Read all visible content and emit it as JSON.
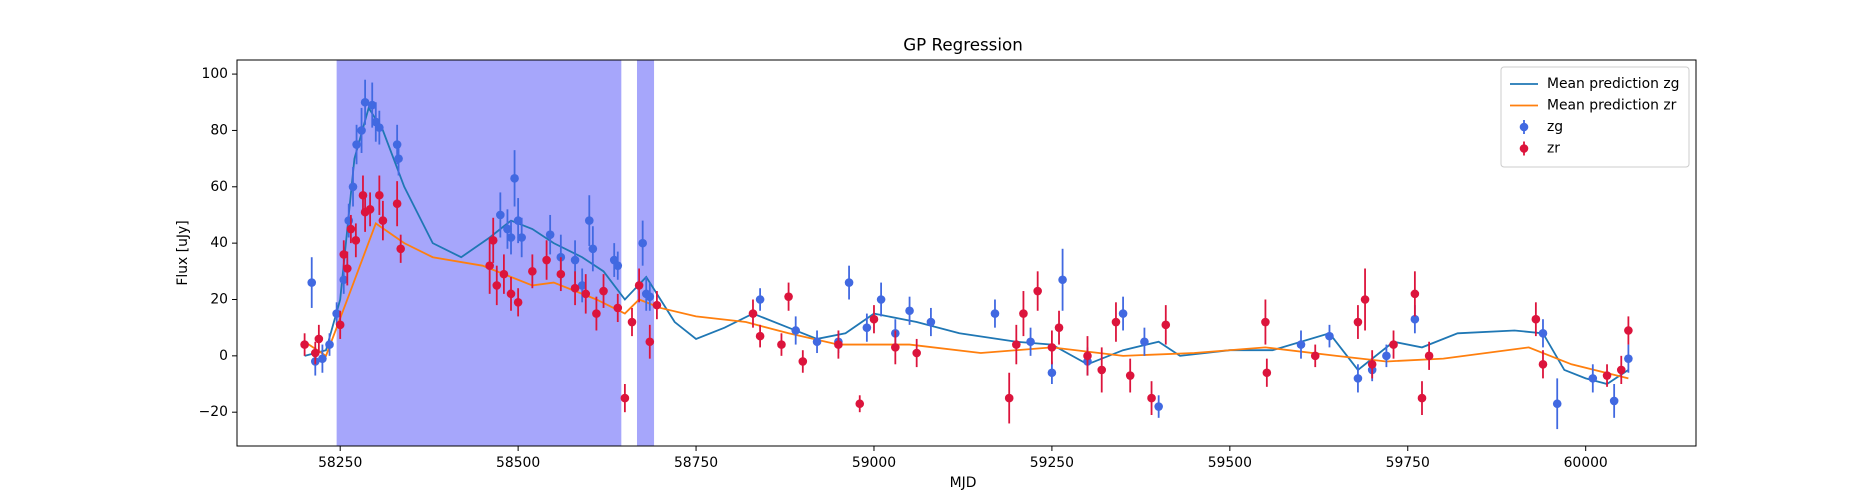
{
  "chart_data": {
    "type": "errorbar",
    "title": "GP Regression",
    "x_label": "MJD",
    "y_label": "Flux [uJy]",
    "xlim": [
      58105,
      60155
    ],
    "ylim": [
      -32,
      105
    ],
    "xticks": [
      58250,
      58500,
      58750,
      59000,
      59250,
      59500,
      59750,
      60000
    ],
    "yticks": [
      {
        "value": -20,
        "label": "−20"
      },
      0,
      20,
      40,
      60,
      80,
      100
    ],
    "legend": "upper right",
    "spans": [
      [
        58245,
        58645
      ],
      [
        58667,
        58691
      ]
    ],
    "span_color": "#a6a6fb",
    "series": [
      {
        "name": "Mean prediction zg",
        "kind": "line",
        "color": "#1f77b4",
        "x": [
          58200,
          58230,
          58250,
          58270,
          58290,
          58310,
          58340,
          58380,
          58420,
          58460,
          58490,
          58520,
          58550,
          58590,
          58620,
          58650,
          58665,
          58680,
          58700,
          58720,
          58750,
          58790,
          58830,
          58880,
          58920,
          58960,
          59000,
          59060,
          59120,
          59200,
          59250,
          59300,
          59350,
          59400,
          59430,
          59500,
          59560,
          59640,
          59680,
          59730,
          59770,
          59820,
          59900,
          59940,
          59970,
          60000,
          60030,
          60060
        ],
        "values": [
          0,
          2,
          20,
          70,
          88,
          80,
          60,
          40,
          35,
          42,
          48,
          45,
          40,
          35,
          30,
          20,
          24,
          28,
          20,
          12,
          6,
          10,
          15,
          10,
          6,
          8,
          15,
          12,
          8,
          5,
          4,
          -3,
          2,
          5,
          0,
          2,
          2,
          8,
          -5,
          5,
          3,
          8,
          9,
          8,
          -5,
          -8,
          -10,
          -5
        ]
      },
      {
        "name": "Mean prediction zr",
        "kind": "line",
        "color": "#ff7f0e",
        "x": [
          58200,
          58230,
          58260,
          58300,
          58340,
          58380,
          58450,
          58520,
          58550,
          58610,
          58650,
          58670,
          58700,
          58750,
          58820,
          58880,
          58950,
          59050,
          59150,
          59250,
          59350,
          59450,
          59550,
          59650,
          59720,
          59800,
          59920,
          59980,
          60060
        ],
        "values": [
          5,
          0,
          20,
          47,
          40,
          35,
          32,
          25,
          26,
          20,
          15,
          20,
          17,
          14,
          12,
          8,
          4,
          4,
          1,
          3,
          0,
          1,
          3,
          0,
          -2,
          -1,
          3,
          -3,
          -8
        ]
      },
      {
        "name": "zg",
        "kind": "errorbar",
        "color": "#4169e1",
        "x": [
          58210,
          58215,
          58225,
          58235,
          58245,
          58255,
          58262,
          58268,
          58273,
          58280,
          58285,
          58295,
          58300,
          58305,
          58330,
          58332,
          58475,
          58485,
          58490,
          58495,
          58500,
          58505,
          58545,
          58560,
          58580,
          58590,
          58600,
          58605,
          58635,
          58640,
          58675,
          58680,
          58685,
          58840,
          58890,
          58920,
          58950,
          58965,
          58990,
          59010,
          59030,
          59050,
          59080,
          59170,
          59220,
          59250,
          59265,
          59300,
          59350,
          59380,
          59400,
          59600,
          59640,
          59680,
          59700,
          59720,
          59760,
          59940,
          59960,
          60010,
          60040,
          60060
        ],
        "values": [
          26,
          -2,
          -1,
          4,
          15,
          27,
          48,
          60,
          75,
          80,
          90,
          89,
          83,
          81,
          75,
          70,
          50,
          45,
          42,
          63,
          48,
          42,
          43,
          35,
          34,
          25,
          48,
          38,
          34,
          32,
          40,
          22,
          21,
          20,
          9,
          5,
          5,
          26,
          10,
          20,
          8,
          16,
          12,
          15,
          5,
          -6,
          27,
          -2,
          15,
          5,
          -18,
          4,
          7,
          -8,
          -5,
          0,
          13,
          8,
          -17,
          -8,
          -16,
          -1
        ],
        "errors": [
          9,
          5,
          5,
          4,
          4,
          5,
          6,
          7,
          7,
          8,
          8,
          8,
          7,
          6,
          7,
          6,
          8,
          7,
          6,
          10,
          8,
          7,
          7,
          8,
          7,
          6,
          9,
          8,
          6,
          5,
          8,
          6,
          5,
          4,
          5,
          4,
          4,
          6,
          5,
          6,
          5,
          5,
          5,
          5,
          5,
          4,
          11,
          5,
          6,
          5,
          4,
          5,
          4,
          5,
          4,
          4,
          5,
          5,
          9,
          5,
          6,
          5
        ]
      },
      {
        "name": "zr",
        "kind": "errorbar",
        "color": "#dc143c",
        "x": [
          58200,
          58215,
          58220,
          58250,
          58255,
          58260,
          58265,
          58272,
          58282,
          58285,
          58292,
          58305,
          58310,
          58330,
          58335,
          58460,
          58465,
          58470,
          58480,
          58490,
          58500,
          58520,
          58540,
          58560,
          58580,
          58595,
          58610,
          58620,
          58640,
          58650,
          58660,
          58670,
          58685,
          58695,
          58830,
          58840,
          58870,
          58880,
          58900,
          58950,
          58980,
          59000,
          59030,
          59060,
          59190,
          59200,
          59210,
          59230,
          59250,
          59260,
          59300,
          59320,
          59340,
          59360,
          59390,
          59410,
          59550,
          59552,
          59620,
          59680,
          59690,
          59700,
          59730,
          59760,
          59770,
          59780,
          59930,
          59940,
          60030,
          60050,
          60060
        ],
        "values": [
          4,
          1,
          6,
          11,
          36,
          31,
          45,
          41,
          57,
          51,
          52,
          57,
          48,
          54,
          38,
          32,
          41,
          25,
          29,
          22,
          19,
          30,
          34,
          29,
          24,
          22,
          15,
          23,
          17,
          -15,
          12,
          25,
          5,
          18,
          15,
          7,
          4,
          21,
          -2,
          4,
          -17,
          13,
          3,
          1,
          -15,
          4,
          15,
          23,
          3,
          10,
          0,
          -5,
          12,
          -7,
          -15,
          11,
          12,
          -6,
          0,
          12,
          20,
          -3,
          4,
          22,
          -15,
          0,
          13,
          -3,
          -7,
          -5,
          9
        ],
        "errors": [
          4,
          4,
          5,
          5,
          5,
          6,
          5,
          6,
          7,
          7,
          6,
          7,
          7,
          8,
          5,
          10,
          8,
          7,
          7,
          6,
          5,
          6,
          7,
          6,
          6,
          7,
          6,
          6,
          5,
          5,
          5,
          6,
          6,
          5,
          5,
          4,
          4,
          5,
          4,
          5,
          3,
          5,
          6,
          5,
          9,
          7,
          8,
          7,
          6,
          6,
          7,
          8,
          7,
          6,
          6,
          7,
          8,
          5,
          4,
          6,
          11,
          5,
          5,
          8,
          6,
          5,
          6,
          5,
          4,
          5,
          5
        ]
      }
    ]
  }
}
